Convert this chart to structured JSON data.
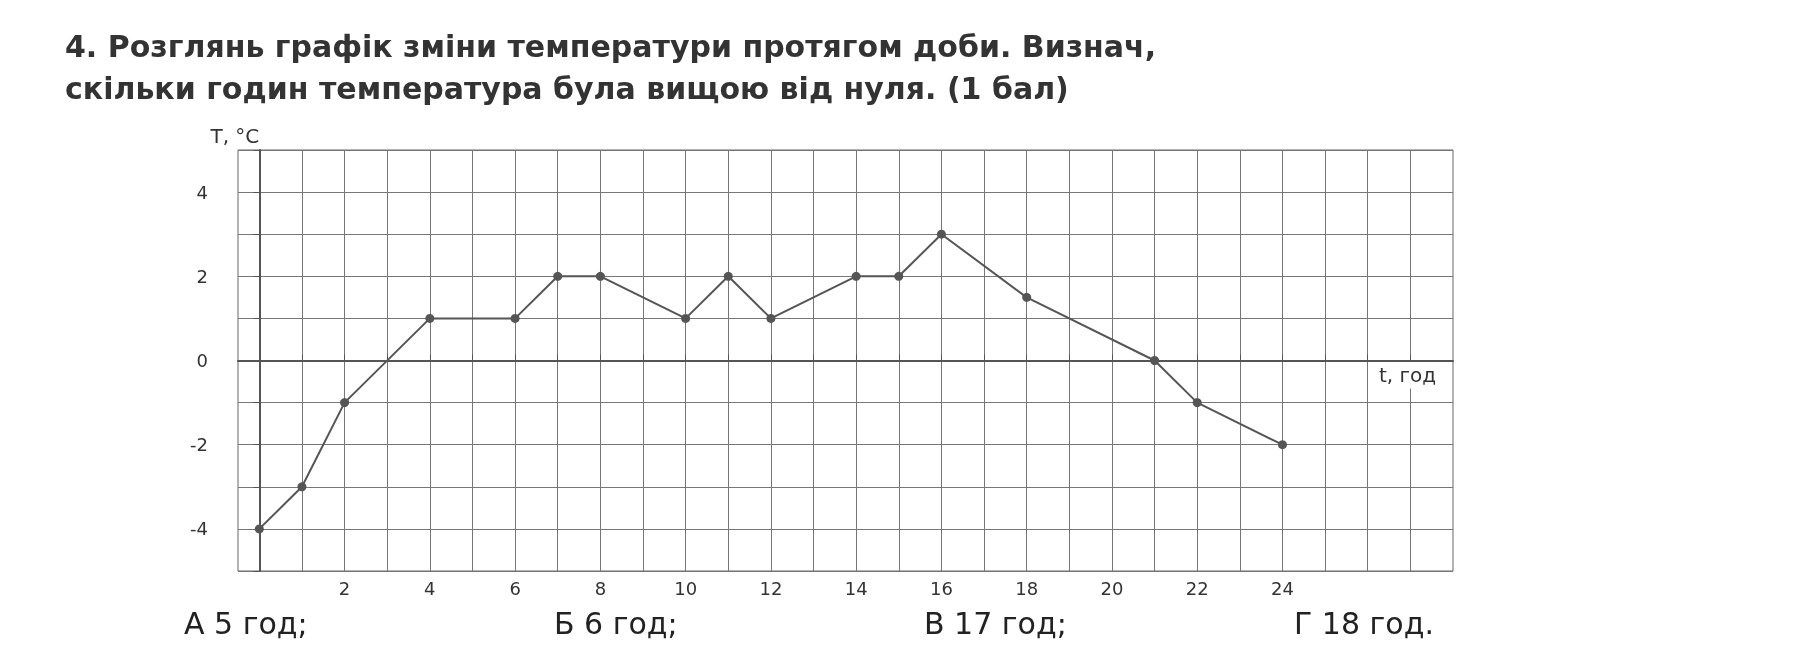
{
  "chart_data": {
    "type": "line",
    "title": "4. Розглянь графік зміни температури протягом доби. Визнач, скільки годин температура була вищою від нуля. (1 бал)",
    "xlabel": "t, год",
    "ylabel": "T, °C",
    "x": [
      0,
      1,
      2,
      4,
      6,
      7,
      8,
      10,
      11,
      12,
      14,
      15,
      16,
      18,
      21,
      22,
      24
    ],
    "series": [
      {
        "color": "#555555",
        "values": [
          -4,
          -3,
          -1,
          1,
          1,
          2,
          2,
          1,
          2,
          1,
          2,
          2,
          3,
          1.5,
          0,
          -1,
          -2
        ]
      }
    ],
    "xlim": [
      -0.5,
      28
    ],
    "xticks": [
      {
        "value": 0,
        "label": null
      },
      {
        "value": 1,
        "label": null
      },
      2,
      {
        "value": 3,
        "label": null
      },
      4,
      {
        "value": 5,
        "label": null
      },
      6,
      {
        "value": 7,
        "label": null
      },
      8,
      {
        "value": 9,
        "label": null
      },
      10,
      {
        "value": 11,
        "label": null
      },
      12,
      {
        "value": 13,
        "label": null
      },
      14,
      {
        "value": 15,
        "label": null
      },
      16,
      {
        "value": 17,
        "label": null
      },
      18,
      {
        "value": 19,
        "label": null
      },
      20,
      {
        "value": 21,
        "label": null
      },
      22,
      {
        "value": 23,
        "label": null
      },
      24,
      {
        "value": 25,
        "label": null
      },
      {
        "value": 26,
        "label": null
      },
      {
        "value": 27,
        "label": null
      }
    ],
    "ylim": [
      -5,
      5
    ],
    "yticks": [
      {
        "value": -5,
        "label": null
      },
      -4,
      {
        "value": -3,
        "label": null
      },
      -2,
      {
        "value": -1,
        "label": null
      },
      0,
      {
        "value": 1,
        "label": null
      },
      2,
      {
        "value": 3,
        "label": null
      },
      4,
      {
        "value": 5,
        "label": null
      }
    ],
    "grid": true,
    "marker": "circle",
    "line_style": "solid",
    "annotations": [
      "А 5 год;",
      "Б 6 год;",
      "В 17 год;",
      "Г 18 год."
    ]
  }
}
